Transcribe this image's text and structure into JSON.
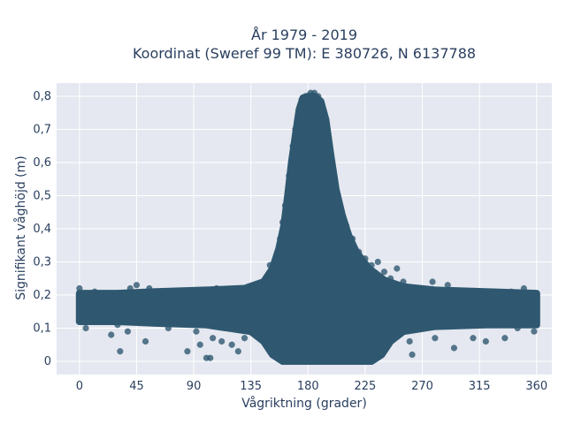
{
  "chart_data": {
    "type": "scatter",
    "title_lines": [
      "År 1979 - 2019",
      "Koordinat (Sweref 99 TM): E 380726, N 6137788"
    ],
    "xlabel": "Vågriktning (grader)",
    "ylabel": "Signifikant våghöjd (m)",
    "xlim": [
      -18,
      372
    ],
    "ylim": [
      -0.04,
      0.84
    ],
    "x_ticks": [
      0,
      45,
      90,
      135,
      180,
      225,
      270,
      315,
      360
    ],
    "x_tick_labels": [
      "0",
      "45",
      "90",
      "135",
      "180",
      "225",
      "270",
      "315",
      "360"
    ],
    "y_ticks": [
      0,
      0.1,
      0.2,
      0.3,
      0.4,
      0.5,
      0.6,
      0.7,
      0.8
    ],
    "y_tick_labels": [
      "0",
      "0,1",
      "0,2",
      "0,3",
      "0,4",
      "0,5",
      "0,6",
      "0,7",
      "0,8"
    ],
    "grid": true,
    "marker_color": "#2f5870",
    "plot_background": "#e5e8f0",
    "series": [
      {
        "points": [
          [
            0,
            0.22
          ],
          [
            5,
            0.1
          ],
          [
            12,
            0.21
          ],
          [
            20,
            0.13
          ],
          [
            25,
            0.08
          ],
          [
            30,
            0.11
          ],
          [
            32,
            0.03
          ],
          [
            35,
            0.14
          ],
          [
            38,
            0.09
          ],
          [
            40,
            0.22
          ],
          [
            45,
            0.23
          ],
          [
            50,
            0.18
          ],
          [
            52,
            0.06
          ],
          [
            55,
            0.22
          ],
          [
            60,
            0.15
          ],
          [
            65,
            0.2
          ],
          [
            70,
            0.1
          ],
          [
            75,
            0.21
          ],
          [
            80,
            0.13
          ],
          [
            85,
            0.03
          ],
          [
            88,
            0.2
          ],
          [
            92,
            0.09
          ],
          [
            95,
            0.05
          ],
          [
            98,
            0.12
          ],
          [
            100,
            0.01
          ],
          [
            103,
            0.01
          ],
          [
            105,
            0.07
          ],
          [
            108,
            0.22
          ],
          [
            112,
            0.06
          ],
          [
            115,
            0.11
          ],
          [
            120,
            0.05
          ],
          [
            125,
            0.03
          ],
          [
            128,
            0.18
          ],
          [
            130,
            0.07
          ],
          [
            135,
            0.11
          ],
          [
            140,
            0.15
          ],
          [
            145,
            0.06
          ],
          [
            148,
            0.25
          ],
          [
            150,
            0.29
          ],
          [
            155,
            0.3
          ],
          [
            158,
            0.37
          ],
          [
            160,
            0.42
          ],
          [
            162,
            0.47
          ],
          [
            165,
            0.56
          ],
          [
            168,
            0.65
          ],
          [
            170,
            0.7
          ],
          [
            172,
            0.72
          ],
          [
            175,
            0.79
          ],
          [
            178,
            0.8
          ],
          [
            180,
            0.79
          ],
          [
            182,
            0.81
          ],
          [
            185,
            0.81
          ],
          [
            188,
            0.8
          ],
          [
            190,
            0.78
          ],
          [
            192,
            0.75
          ],
          [
            195,
            0.7
          ],
          [
            198,
            0.6
          ],
          [
            200,
            0.55
          ],
          [
            203,
            0.5
          ],
          [
            205,
            0.47
          ],
          [
            210,
            0.41
          ],
          [
            212,
            0.37
          ],
          [
            215,
            0.37
          ],
          [
            220,
            0.33
          ],
          [
            225,
            0.31
          ],
          [
            230,
            0.29
          ],
          [
            235,
            0.3
          ],
          [
            240,
            0.27
          ],
          [
            245,
            0.25
          ],
          [
            250,
            0.28
          ],
          [
            255,
            0.24
          ],
          [
            260,
            0.06
          ],
          [
            262,
            0.02
          ],
          [
            265,
            0.1
          ],
          [
            270,
            0.19
          ],
          [
            275,
            0.12
          ],
          [
            278,
            0.24
          ],
          [
            280,
            0.07
          ],
          [
            285,
            0.21
          ],
          [
            290,
            0.23
          ],
          [
            295,
            0.04
          ],
          [
            300,
            0.12
          ],
          [
            305,
            0.21
          ],
          [
            310,
            0.07
          ],
          [
            315,
            0.2
          ],
          [
            320,
            0.06
          ],
          [
            325,
            0.21
          ],
          [
            330,
            0.16
          ],
          [
            335,
            0.07
          ],
          [
            340,
            0.21
          ],
          [
            345,
            0.1
          ],
          [
            350,
            0.22
          ],
          [
            355,
            0.13
          ],
          [
            358,
            0.09
          ],
          [
            360,
            0.19
          ]
        ]
      }
    ]
  }
}
